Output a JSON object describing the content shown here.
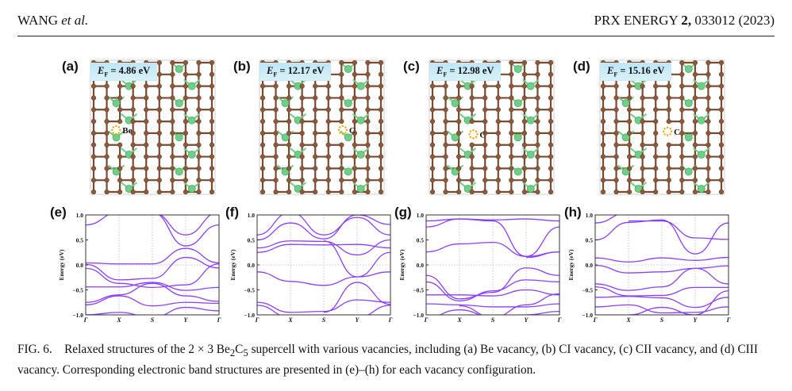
{
  "header": {
    "author": "WANG",
    "author_suffix": "et al.",
    "journal": "PRX ENERGY",
    "volume": "2,",
    "article": "033012 (2023)"
  },
  "colors": {
    "carbon": "#8b5a3c",
    "beryllium": "#6fcf86",
    "bond_c": "#7a4a30",
    "bond_be": "#6fcf86",
    "vacancy": "#f5a300",
    "band_line": "#8a3ffc",
    "ef_box": "#c9ebf8"
  },
  "structures": [
    {
      "label": "(a)",
      "ef_symbol": "E",
      "ef_sub": "F",
      "ef_value": "= 4.86 eV",
      "vacancy_label": "Be"
    },
    {
      "label": "(b)",
      "ef_symbol": "E",
      "ef_sub": "F",
      "ef_value": "= 12.17 eV",
      "vacancy_label": "C"
    },
    {
      "label": "(c)",
      "ef_symbol": "E",
      "ef_sub": "F",
      "ef_value": "= 12.98 eV",
      "vacancy_label": "C"
    },
    {
      "label": "(d)",
      "ef_symbol": "E",
      "ef_sub": "F",
      "ef_value": "= 15.16 eV",
      "vacancy_label": "C"
    }
  ],
  "chart_data": [
    {
      "type": "line",
      "panel": "(e)",
      "title": "",
      "xlabel": "",
      "ylabel": "Energy (eV)",
      "ylim": [
        -1.0,
        1.0
      ],
      "x_ticks": [
        "Γ",
        "X",
        "S",
        "Y",
        "Γ"
      ],
      "y_ticks": [
        "1.0",
        "0.5",
        "0.0",
        "−0.5",
        "−1.0"
      ],
      "grid": "dotted at high-symmetry points and E=0",
      "x": [
        0,
        0.25,
        0.5,
        0.75,
        1.0
      ],
      "series": [
        {
          "name": "band1",
          "values": [
            0.8,
            1.05,
            null,
            null,
            null
          ]
        },
        {
          "name": "band2",
          "values": [
            null,
            null,
            1.05,
            0.6,
            1.05
          ]
        },
        {
          "name": "band3",
          "values": [
            null,
            null,
            1.05,
            0.38,
            0.8
          ]
        },
        {
          "name": "band4",
          "values": [
            0.04,
            0.02,
            0.02,
            0.33,
            0.04
          ]
        },
        {
          "name": "band5",
          "values": [
            0.01,
            -0.3,
            -0.27,
            0.15,
            -0.06
          ]
        },
        {
          "name": "band6",
          "values": [
            -0.07,
            -0.37,
            -0.45,
            -0.4,
            0.02
          ]
        },
        {
          "name": "band7",
          "values": [
            -0.44,
            -0.44,
            -0.35,
            -0.51,
            -0.45
          ]
        },
        {
          "name": "band8",
          "values": [
            -0.75,
            -0.6,
            -0.37,
            -0.62,
            -0.73
          ]
        },
        {
          "name": "band9",
          "values": [
            -0.8,
            -0.62,
            -0.82,
            -0.75,
            -0.77
          ]
        },
        {
          "name": "band10",
          "values": [
            -1.0,
            -0.95,
            -1.05,
            -0.85,
            -0.92
          ]
        }
      ]
    },
    {
      "type": "line",
      "panel": "(f)",
      "title": "",
      "xlabel": "",
      "ylabel": "Energy (eV)",
      "ylim": [
        -1.0,
        1.0
      ],
      "x_ticks": [
        "Γ",
        "X",
        "S",
        "Y",
        "Γ"
      ],
      "y_ticks": [
        "1.0",
        "0.5",
        "0.0",
        "−0.5",
        "−1.0"
      ],
      "grid": "dotted at high-symmetry points and E=0",
      "x": [
        0,
        0.25,
        0.5,
        0.75,
        1.0
      ],
      "series": [
        {
          "name": "band1",
          "values": [
            0.6,
            1.05,
            0.6,
            0.95,
            0.6
          ]
        },
        {
          "name": "band2",
          "values": [
            0.5,
            0.84,
            0.52,
            1.0,
            0.81
          ]
        },
        {
          "name": "band3",
          "values": [
            0.34,
            0.48,
            0.47,
            0.2,
            0.5
          ]
        },
        {
          "name": "band4",
          "values": [
            0.25,
            0.41,
            0.4,
            0.41,
            0.34
          ]
        },
        {
          "name": "band5",
          "values": [
            null,
            null,
            0.48,
            -0.24,
            0.25
          ]
        },
        {
          "name": "band6",
          "values": [
            -0.14,
            -0.33,
            -0.41,
            -0.24,
            -0.14
          ]
        },
        {
          "name": "band7",
          "values": [
            null,
            null,
            -0.95,
            -0.35,
            -0.79
          ]
        },
        {
          "name": "band8",
          "values": [
            -0.75,
            -0.95,
            -0.93,
            -0.7,
            -0.75
          ]
        },
        {
          "name": "band9",
          "values": [
            -0.81,
            -1.05,
            -1.0,
            -1.05,
            -0.81
          ]
        }
      ]
    },
    {
      "type": "line",
      "panel": "(g)",
      "title": "",
      "xlabel": "",
      "ylabel": "Energy (eV)",
      "ylim": [
        -1.0,
        1.0
      ],
      "x_ticks": [
        "Γ",
        "X",
        "S",
        "Y",
        "Γ"
      ],
      "y_ticks": [
        "1.0",
        "0.5",
        "0.0",
        "−0.5",
        "−1.0"
      ],
      "grid": "dotted at high-symmetry points and E=0",
      "x": [
        0,
        0.25,
        0.5,
        0.75,
        1.0
      ],
      "series": [
        {
          "name": "band1",
          "values": [
            0.88,
            0.92,
            0.9,
            0.92,
            0.88
          ]
        },
        {
          "name": "band2",
          "values": [
            0.76,
            0.92,
            0.88,
            0.17,
            0.76
          ]
        },
        {
          "name": "band3",
          "values": [
            0.26,
            0.42,
            0.45,
            0.17,
            0.26
          ]
        },
        {
          "name": "band4",
          "values": [
            null,
            null,
            null,
            0.15,
            0.26
          ]
        },
        {
          "name": "band5",
          "values": [
            -0.21,
            -0.68,
            -0.55,
            -0.06,
            -0.21
          ]
        },
        {
          "name": "band6",
          "values": [
            -0.34,
            -0.72,
            -0.52,
            -0.3,
            -0.34
          ]
        },
        {
          "name": "band7",
          "values": [
            -0.6,
            -0.6,
            -0.62,
            -0.5,
            -0.6
          ]
        },
        {
          "name": "band8",
          "values": [
            -0.78,
            -0.8,
            -0.84,
            -0.84,
            -0.78
          ]
        },
        {
          "name": "band9",
          "values": [
            null,
            -0.82,
            -1.05,
            -0.8,
            -0.58
          ]
        },
        {
          "name": "band10",
          "values": [
            -1.05,
            -0.9,
            -1.05,
            -1.0,
            -0.93
          ]
        }
      ]
    },
    {
      "type": "line",
      "panel": "(h)",
      "title": "",
      "xlabel": "",
      "ylabel": "Energy (eV)",
      "ylim": [
        -1.0,
        1.0
      ],
      "x_ticks": [
        "Γ",
        "X",
        "S",
        "Y",
        "Γ"
      ],
      "y_ticks": [
        "1.0",
        "0.5",
        "0.0",
        "−0.5",
        "−1.0"
      ],
      "grid": "dotted at high-symmetry points and E=0",
      "x": [
        0,
        0.25,
        0.5,
        0.75,
        1.0
      ],
      "series": [
        {
          "name": "band1",
          "values": [
            0.84,
            1.05,
            null,
            null,
            null
          ]
        },
        {
          "name": "band2",
          "values": [
            0.5,
            0.85,
            0.9,
            0.22,
            0.84
          ]
        },
        {
          "name": "band3",
          "values": [
            null,
            0.88,
            0.88,
            0.54,
            0.51
          ]
        },
        {
          "name": "band4",
          "values": [
            0.14,
            0.06,
            0.14,
            0.09,
            0.15
          ]
        },
        {
          "name": "band5",
          "values": [
            -0.01,
            -0.16,
            -0.14,
            -0.07,
            -0.02
          ]
        },
        {
          "name": "band6",
          "values": [
            -0.38,
            -0.51,
            -0.44,
            -0.07,
            -0.38
          ]
        },
        {
          "name": "band7",
          "values": [
            -0.44,
            -0.62,
            -0.61,
            -0.45,
            -0.45
          ]
        },
        {
          "name": "band8",
          "values": [
            -0.65,
            -0.63,
            -0.66,
            -0.85,
            -0.65
          ]
        },
        {
          "name": "band9",
          "values": [
            -0.84,
            -0.8,
            -0.96,
            -0.95,
            -0.84
          ]
        },
        {
          "name": "band10",
          "values": [
            null,
            -1.0,
            -0.85,
            -1.0,
            -0.52
          ]
        }
      ]
    }
  ],
  "caption": {
    "fig_label": "FIG. 6.",
    "text_1": "Relaxed structures of the 2 × 3 Be",
    "sub_1": "2",
    "text_2": "C",
    "sub_2": "5",
    "text_3": " supercell with various vacancies, including (a) Be vacancy, (b) CI vacancy, (c) CII vacancy, and (d) CIII vacancy. Corresponding electronic band structures are presented in (e)–(h) for each vacancy configuration."
  }
}
